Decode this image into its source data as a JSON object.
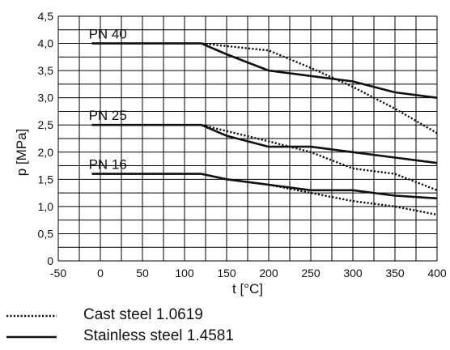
{
  "chart_data": {
    "type": "line",
    "title": "",
    "xlabel": "t [°C]",
    "ylabel": "p [MPa]",
    "xlim": [
      -50,
      400
    ],
    "ylim": [
      0,
      4.5
    ],
    "x_ticks": [
      "-50",
      "0",
      "50",
      "100",
      "150",
      "200",
      "250",
      "300",
      "350",
      "400"
    ],
    "y_ticks": [
      "0",
      "0,5",
      "1,0",
      "1,5",
      "2,0",
      "2,5",
      "3,0",
      "3,5",
      "4,0",
      "4,5"
    ],
    "grid": true,
    "curve_labels": [
      {
        "text": "PN 40"
      },
      {
        "text": "PN 25"
      },
      {
        "text": "PN 16"
      }
    ],
    "series": [
      {
        "group": "PN 40",
        "material": "Cast steel 1.0619",
        "style": "dotted",
        "x": [
          -10,
          120,
          200,
          250,
          300,
          350,
          400
        ],
        "y": [
          4.0,
          4.0,
          3.87,
          3.55,
          3.2,
          2.8,
          2.35
        ]
      },
      {
        "group": "PN 40",
        "material": "Stainless steel 1.4581",
        "style": "solid",
        "x": [
          -10,
          120,
          150,
          200,
          250,
          300,
          350,
          400
        ],
        "y": [
          4.0,
          4.0,
          3.8,
          3.5,
          3.4,
          3.3,
          3.1,
          3.0
        ]
      },
      {
        "group": "PN 25",
        "material": "Cast steel 1.0619",
        "style": "dotted",
        "x": [
          -10,
          120,
          200,
          250,
          300,
          350,
          400
        ],
        "y": [
          2.5,
          2.5,
          2.2,
          2.0,
          1.7,
          1.6,
          1.3
        ]
      },
      {
        "group": "PN 25",
        "material": "Stainless steel 1.4581",
        "style": "solid",
        "x": [
          -10,
          120,
          150,
          200,
          250,
          300,
          350,
          400
        ],
        "y": [
          2.5,
          2.5,
          2.3,
          2.1,
          2.1,
          2.0,
          1.9,
          1.8
        ]
      },
      {
        "group": "PN 16",
        "material": "Cast steel 1.0619",
        "style": "dotted",
        "x": [
          -10,
          120,
          150,
          200,
          250,
          300,
          350,
          400
        ],
        "y": [
          1.6,
          1.6,
          1.5,
          1.4,
          1.25,
          1.1,
          1.0,
          0.85
        ]
      },
      {
        "group": "PN 16",
        "material": "Stainless steel 1.4581",
        "style": "solid",
        "x": [
          -10,
          120,
          150,
          200,
          250,
          300,
          350,
          400
        ],
        "y": [
          1.6,
          1.6,
          1.5,
          1.4,
          1.3,
          1.3,
          1.2,
          1.15
        ]
      }
    ],
    "legend": {
      "placement": "bottom-left",
      "items": [
        {
          "label": "Cast steel 1.0619",
          "style": "dotted"
        },
        {
          "label": "Stainless steel 1.4581",
          "style": "solid"
        }
      ]
    },
    "line_color": "#111111",
    "grid_color": "#000000"
  }
}
